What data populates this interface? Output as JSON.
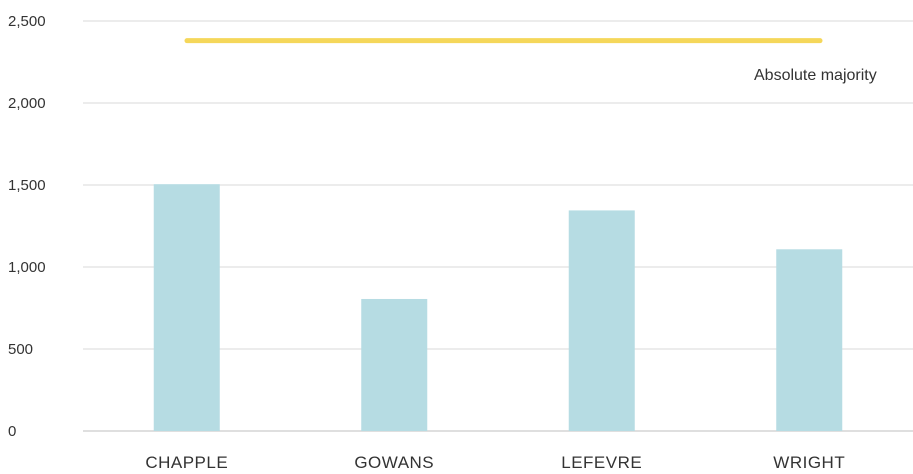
{
  "chart_data": {
    "type": "bar",
    "categories": [
      "CHAPPLE",
      "GOWANS",
      "LEFEVRE",
      "WRIGHT"
    ],
    "series": [
      {
        "values": [
          1505,
          805,
          1345,
          1108
        ],
        "color": "#b6dce3"
      }
    ],
    "ylim": [
      0,
      2500
    ],
    "yticks": [
      0,
      500,
      1000,
      1500,
      2000,
      2500
    ],
    "ytick_labels": [
      "0",
      "500",
      "1,000",
      "1,500",
      "2,000",
      "2,500"
    ],
    "grid": true,
    "reference_line": {
      "label": "Absolute majority",
      "value": 2380,
      "color": "#f5d75a"
    }
  }
}
